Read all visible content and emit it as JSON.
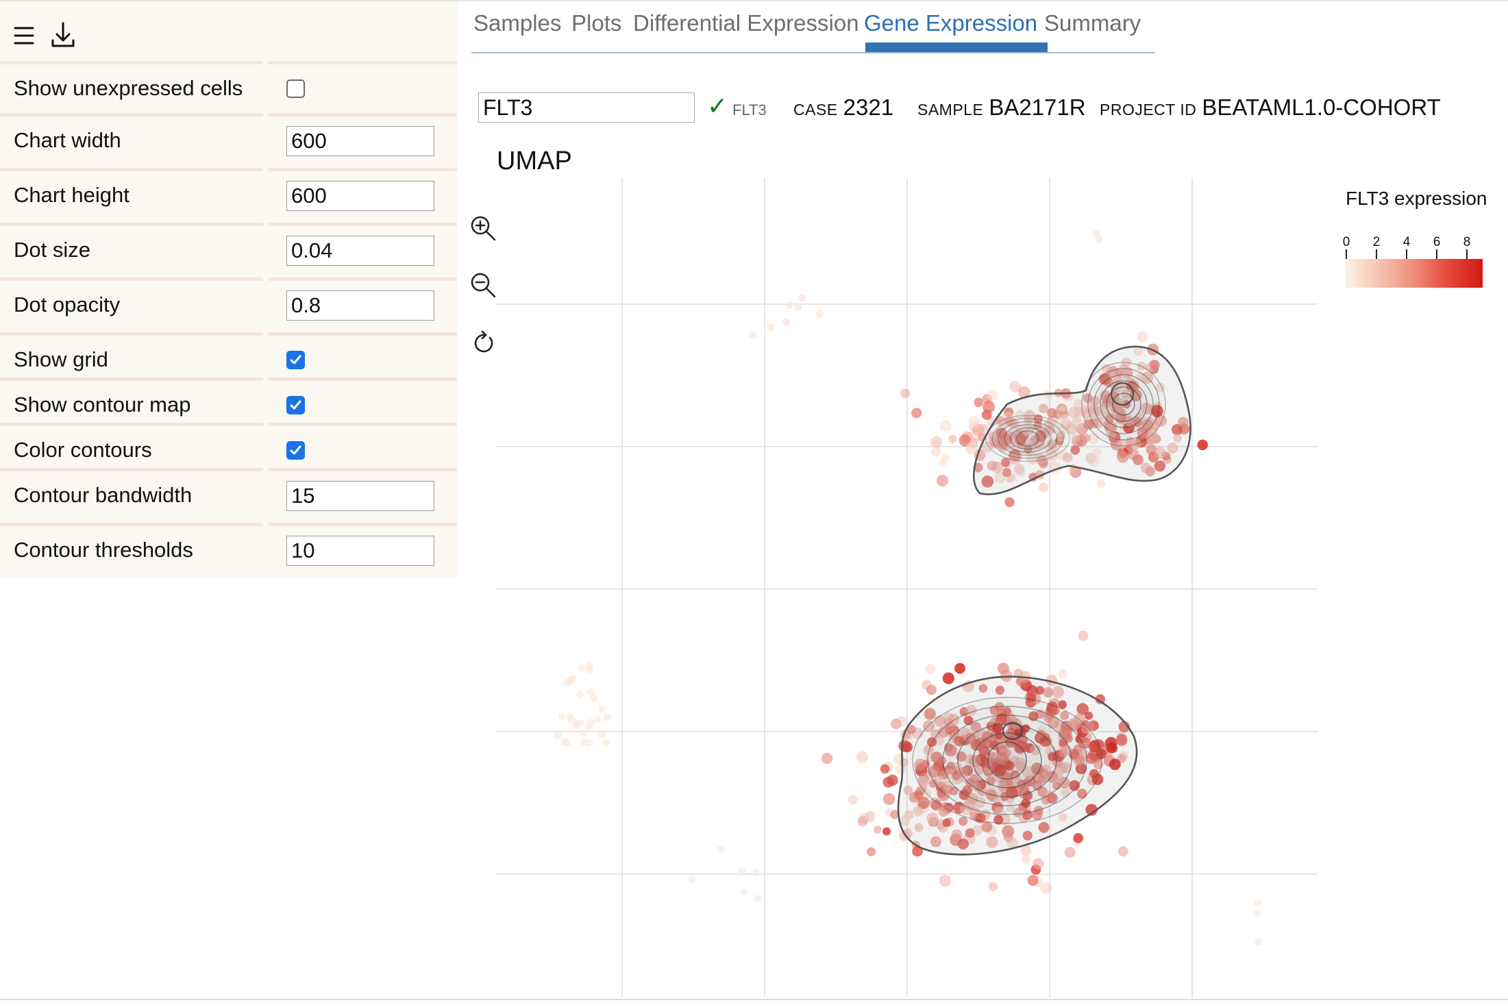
{
  "toolbar": {
    "menu_icon": "hamburger-menu-icon",
    "download_icon": "download-icon"
  },
  "settings": [
    {
      "label": "Show unexpressed cells",
      "type": "checkbox",
      "checked": false
    },
    {
      "label": "Chart width",
      "type": "number",
      "value": "600"
    },
    {
      "label": "Chart height",
      "type": "number",
      "value": "600"
    },
    {
      "label": "Dot size",
      "type": "number",
      "value": "0.04"
    },
    {
      "label": "Dot opacity",
      "type": "number",
      "value": "0.8"
    },
    {
      "label": "Show grid",
      "type": "checkbox",
      "checked": true
    },
    {
      "label": "Show contour map",
      "type": "checkbox",
      "checked": true
    },
    {
      "label": "Color contours",
      "type": "checkbox",
      "checked": true
    },
    {
      "label": "Contour bandwidth",
      "type": "number",
      "value": "15"
    },
    {
      "label": "Contour thresholds",
      "type": "number",
      "value": "10"
    }
  ],
  "tabs": [
    {
      "label": "Samples",
      "active": false
    },
    {
      "label": "Plots",
      "active": false
    },
    {
      "label": "Differential Expression",
      "active": false
    },
    {
      "label": "Gene Expression",
      "active": true
    },
    {
      "label": "Summary",
      "active": false
    }
  ],
  "gene": {
    "input_value": "FLT3",
    "validated_label": "FLT3"
  },
  "info": {
    "case_key": "CASE",
    "case_value": "2321",
    "sample_key": "SAMPLE",
    "sample_value": "BA2171R",
    "project_key": "PROJECT ID",
    "project_value": "BEATAML1.0-COHORT"
  },
  "plot": {
    "title": "UMAP"
  },
  "plot_tools": [
    "zoom-in-icon",
    "zoom-out-icon",
    "reset-icon"
  ],
  "legend": {
    "title": "FLT3 expression",
    "ticks": [
      "0",
      "2",
      "4",
      "6",
      "8"
    ],
    "domain": [
      0,
      9
    ],
    "colors": [
      "#fdf2e4",
      "#d21a12"
    ]
  },
  "colors": {
    "accent": "#2e6fb2",
    "checkbox": "#1a73e8",
    "panel_bg": "#fbf8f2"
  }
}
